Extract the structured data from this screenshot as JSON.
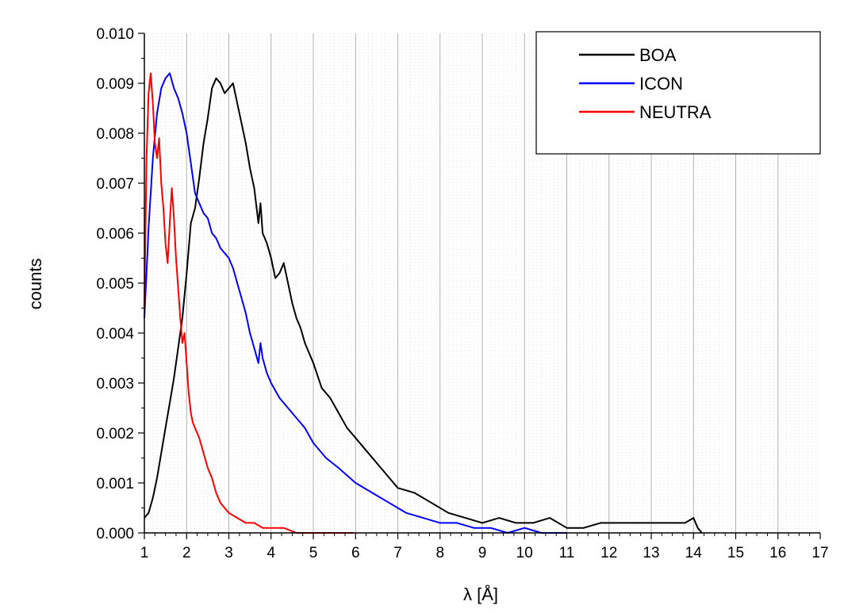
{
  "chart_data": {
    "type": "line",
    "title": "",
    "xlabel": "λ [Å]",
    "ylabel": "counts",
    "xlim": [
      1,
      17
    ],
    "ylim": [
      0,
      0.01
    ],
    "x_ticks": [
      1,
      2,
      3,
      4,
      5,
      6,
      7,
      8,
      9,
      10,
      11,
      12,
      13,
      14,
      15,
      16,
      17
    ],
    "y_ticks": [
      "0.000",
      "0.001",
      "0.002",
      "0.003",
      "0.004",
      "0.005",
      "0.006",
      "0.007",
      "0.008",
      "0.009",
      "0.010"
    ],
    "grid": true,
    "legend": "top-right",
    "series": [
      {
        "name": "BOA",
        "color": "#000000",
        "x": [
          1.0,
          1.1,
          1.2,
          1.3,
          1.4,
          1.5,
          1.6,
          1.7,
          1.8,
          1.9,
          2.0,
          2.1,
          2.2,
          2.3,
          2.4,
          2.5,
          2.6,
          2.7,
          2.8,
          2.9,
          3.0,
          3.1,
          3.2,
          3.3,
          3.4,
          3.5,
          3.6,
          3.7,
          3.75,
          3.8,
          3.9,
          4.0,
          4.1,
          4.2,
          4.3,
          4.4,
          4.5,
          4.6,
          4.7,
          4.8,
          5.0,
          5.2,
          5.4,
          5.6,
          5.8,
          6.0,
          6.3,
          6.6,
          7.0,
          7.4,
          7.8,
          8.2,
          8.6,
          9.0,
          9.4,
          9.8,
          10.2,
          10.6,
          11.0,
          11.4,
          11.8,
          12.2,
          12.6,
          13.0,
          13.4,
          13.8,
          14.0,
          14.1,
          14.2
        ],
        "values": [
          0.0003,
          0.0004,
          0.0007,
          0.0011,
          0.0016,
          0.0021,
          0.0026,
          0.0031,
          0.0037,
          0.0043,
          0.0052,
          0.0062,
          0.0065,
          0.0071,
          0.0078,
          0.0083,
          0.0089,
          0.0091,
          0.009,
          0.0088,
          0.0089,
          0.009,
          0.0086,
          0.0082,
          0.0078,
          0.0073,
          0.0069,
          0.0062,
          0.0066,
          0.006,
          0.0058,
          0.0055,
          0.0051,
          0.0052,
          0.0054,
          0.005,
          0.0046,
          0.0043,
          0.0041,
          0.0038,
          0.0034,
          0.0029,
          0.0027,
          0.0024,
          0.0021,
          0.0019,
          0.0016,
          0.0013,
          0.0009,
          0.0008,
          0.0006,
          0.0004,
          0.0003,
          0.0002,
          0.0003,
          0.0002,
          0.0002,
          0.0003,
          0.0001,
          0.0001,
          0.0002,
          0.0002,
          0.0002,
          0.0002,
          0.0002,
          0.0002,
          0.0003,
          0.0001,
          0.0
        ]
      },
      {
        "name": "ICON",
        "color": "#0000ff",
        "x": [
          1.0,
          1.05,
          1.1,
          1.2,
          1.3,
          1.4,
          1.5,
          1.6,
          1.7,
          1.8,
          1.9,
          2.0,
          2.1,
          2.2,
          2.3,
          2.4,
          2.5,
          2.6,
          2.7,
          2.8,
          2.9,
          3.0,
          3.1,
          3.2,
          3.3,
          3.4,
          3.5,
          3.6,
          3.7,
          3.75,
          3.8,
          3.9,
          4.0,
          4.2,
          4.4,
          4.6,
          4.8,
          5.0,
          5.3,
          5.6,
          6.0,
          6.4,
          6.8,
          7.2,
          7.6,
          8.0,
          8.4,
          8.8,
          9.2,
          9.6,
          10.0,
          10.4,
          10.8,
          11.0
        ],
        "values": [
          0.0043,
          0.0052,
          0.0061,
          0.0075,
          0.0084,
          0.0089,
          0.0091,
          0.0092,
          0.0089,
          0.0087,
          0.0084,
          0.008,
          0.0074,
          0.0068,
          0.0066,
          0.0064,
          0.0063,
          0.006,
          0.0059,
          0.0057,
          0.0056,
          0.0055,
          0.0053,
          0.005,
          0.0047,
          0.0044,
          0.004,
          0.0037,
          0.0034,
          0.0038,
          0.0035,
          0.0032,
          0.003,
          0.0027,
          0.0025,
          0.0023,
          0.0021,
          0.0018,
          0.0015,
          0.0013,
          0.001,
          0.0008,
          0.0006,
          0.0004,
          0.0003,
          0.0002,
          0.0002,
          0.0001,
          0.0001,
          0.0,
          0.0001,
          0.0,
          0.0,
          0.0
        ]
      },
      {
        "name": "NEUTRA",
        "color": "#ff0000",
        "x": [
          1.0,
          1.05,
          1.1,
          1.15,
          1.2,
          1.25,
          1.3,
          1.35,
          1.4,
          1.45,
          1.5,
          1.55,
          1.6,
          1.65,
          1.7,
          1.75,
          1.8,
          1.85,
          1.9,
          1.95,
          2.0,
          2.05,
          2.1,
          2.15,
          2.2,
          2.3,
          2.4,
          2.5,
          2.6,
          2.7,
          2.8,
          2.9,
          3.0,
          3.2,
          3.4,
          3.6,
          3.8,
          4.0,
          4.3,
          4.6,
          5.0,
          5.4,
          5.8,
          5.95
        ],
        "values": [
          0.0045,
          0.0075,
          0.0088,
          0.0092,
          0.0086,
          0.0078,
          0.0075,
          0.0079,
          0.007,
          0.0065,
          0.0058,
          0.0054,
          0.0062,
          0.0069,
          0.0063,
          0.0055,
          0.0049,
          0.0043,
          0.0038,
          0.004,
          0.0034,
          0.0028,
          0.0024,
          0.0022,
          0.0021,
          0.0019,
          0.0016,
          0.0013,
          0.0011,
          0.0008,
          0.0006,
          0.0005,
          0.0004,
          0.0003,
          0.0002,
          0.0002,
          0.0001,
          0.0001,
          0.0001,
          0.0,
          0.0,
          0.0,
          0.0,
          0.0
        ]
      }
    ]
  }
}
